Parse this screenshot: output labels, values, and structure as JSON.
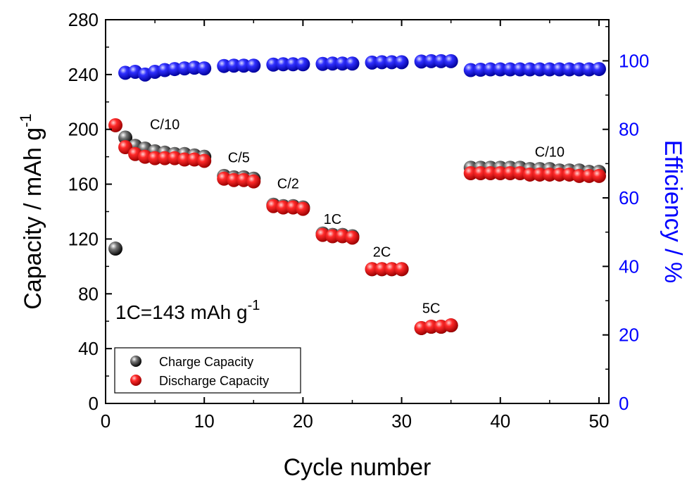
{
  "chart_data": {
    "type": "scatter",
    "xlabel": "Cycle number",
    "ylabel": "Capacity / mAh g",
    "ylabel_superscript": "-1",
    "y2label": "Efficiency / %",
    "xlim": [
      0,
      51
    ],
    "ylim": [
      0,
      280
    ],
    "y2lim": [
      0,
      112
    ],
    "xticks": [
      "0",
      "10",
      "20",
      "30",
      "40",
      "50"
    ],
    "yticks": [
      "0",
      "40",
      "80",
      "120",
      "160",
      "200",
      "240",
      "280"
    ],
    "y2ticks": [
      "0",
      "20",
      "40",
      "60",
      "80",
      "100"
    ],
    "grid": false,
    "legend_position": "bottom-left",
    "note": {
      "text": "1C=143 mAh g",
      "superscript": "-1"
    },
    "rate_labels": [
      {
        "text": "C/10",
        "x": 6,
        "y": 200
      },
      {
        "text": "C/5",
        "x": 13.5,
        "y": 176
      },
      {
        "text": "C/2",
        "x": 18.5,
        "y": 157
      },
      {
        "text": "1C",
        "x": 23,
        "y": 131
      },
      {
        "text": "2C",
        "x": 28,
        "y": 107
      },
      {
        "text": "5C",
        "x": 33,
        "y": 66
      },
      {
        "text": "C/10",
        "x": 45,
        "y": 180
      }
    ],
    "series": [
      {
        "name": "Charge Capacity",
        "axis": "left",
        "color": "#000000",
        "points": [
          [
            1,
            113
          ],
          [
            2,
            194
          ],
          [
            3,
            188
          ],
          [
            4,
            186
          ],
          [
            5,
            184
          ],
          [
            6,
            183
          ],
          [
            7,
            182
          ],
          [
            8,
            182
          ],
          [
            9,
            181
          ],
          [
            10,
            180
          ],
          [
            12,
            166
          ],
          [
            13,
            165
          ],
          [
            14,
            165
          ],
          [
            15,
            164
          ],
          [
            17,
            145
          ],
          [
            18,
            144
          ],
          [
            19,
            144
          ],
          [
            20,
            143
          ],
          [
            22,
            124
          ],
          [
            23,
            123
          ],
          [
            24,
            123
          ],
          [
            25,
            122
          ],
          [
            27,
            98
          ],
          [
            28,
            98
          ],
          [
            29,
            98
          ],
          [
            30,
            98
          ],
          [
            32,
            55
          ],
          [
            33,
            56
          ],
          [
            34,
            56
          ],
          [
            35,
            57
          ],
          [
            37,
            172
          ],
          [
            38,
            172
          ],
          [
            39,
            172
          ],
          [
            40,
            172
          ],
          [
            41,
            172
          ],
          [
            42,
            172
          ],
          [
            43,
            171
          ],
          [
            44,
            171
          ],
          [
            45,
            171
          ],
          [
            46,
            170
          ],
          [
            47,
            170
          ],
          [
            48,
            170
          ],
          [
            49,
            169
          ],
          [
            50,
            169
          ]
        ]
      },
      {
        "name": "Discharge Capacity",
        "axis": "left",
        "color": "#ff0000",
        "points": [
          [
            1,
            203
          ],
          [
            2,
            187
          ],
          [
            3,
            182
          ],
          [
            4,
            180
          ],
          [
            5,
            179
          ],
          [
            6,
            179
          ],
          [
            7,
            179
          ],
          [
            8,
            178
          ],
          [
            9,
            178
          ],
          [
            10,
            177
          ],
          [
            12,
            164
          ],
          [
            13,
            163
          ],
          [
            14,
            163
          ],
          [
            15,
            162
          ],
          [
            17,
            144
          ],
          [
            18,
            143
          ],
          [
            19,
            143
          ],
          [
            20,
            142
          ],
          [
            22,
            123
          ],
          [
            23,
            122
          ],
          [
            24,
            122
          ],
          [
            25,
            121
          ],
          [
            27,
            98
          ],
          [
            28,
            98
          ],
          [
            29,
            98
          ],
          [
            30,
            98
          ],
          [
            32,
            55
          ],
          [
            33,
            56
          ],
          [
            34,
            56
          ],
          [
            35,
            57
          ],
          [
            37,
            168
          ],
          [
            38,
            168
          ],
          [
            39,
            168
          ],
          [
            40,
            168
          ],
          [
            41,
            168
          ],
          [
            42,
            168
          ],
          [
            43,
            167
          ],
          [
            44,
            167
          ],
          [
            45,
            167
          ],
          [
            46,
            167
          ],
          [
            47,
            167
          ],
          [
            48,
            166
          ],
          [
            49,
            166
          ],
          [
            50,
            166
          ]
        ]
      },
      {
        "name": "Efficiency",
        "axis": "right",
        "color": "#0000ff",
        "points": [
          [
            2,
            96.5
          ],
          [
            3,
            96.8
          ],
          [
            4,
            96
          ],
          [
            5,
            96.8
          ],
          [
            6,
            97.3
          ],
          [
            7,
            97.6
          ],
          [
            8,
            97.8
          ],
          [
            9,
            98
          ],
          [
            10,
            97.8
          ],
          [
            12,
            98.5
          ],
          [
            13,
            98.6
          ],
          [
            14,
            98.6
          ],
          [
            15,
            98.6
          ],
          [
            17,
            98.9
          ],
          [
            18,
            99
          ],
          [
            19,
            99
          ],
          [
            20,
            99
          ],
          [
            22,
            99.1
          ],
          [
            23,
            99.2
          ],
          [
            24,
            99.2
          ],
          [
            25,
            99.2
          ],
          [
            27,
            99.5
          ],
          [
            28,
            99.6
          ],
          [
            29,
            99.6
          ],
          [
            30,
            99.6
          ],
          [
            32,
            99.8
          ],
          [
            33,
            99.9
          ],
          [
            34,
            99.9
          ],
          [
            35,
            99.9
          ],
          [
            37,
            97.3
          ],
          [
            38,
            97.4
          ],
          [
            39,
            97.5
          ],
          [
            40,
            97.5
          ],
          [
            41,
            97.5
          ],
          [
            42,
            97.5
          ],
          [
            43,
            97.5
          ],
          [
            44,
            97.5
          ],
          [
            45,
            97.5
          ],
          [
            46,
            97.5
          ],
          [
            47,
            97.5
          ],
          [
            48,
            97.5
          ],
          [
            49,
            97.5
          ],
          [
            50,
            97.6
          ]
        ]
      }
    ]
  }
}
